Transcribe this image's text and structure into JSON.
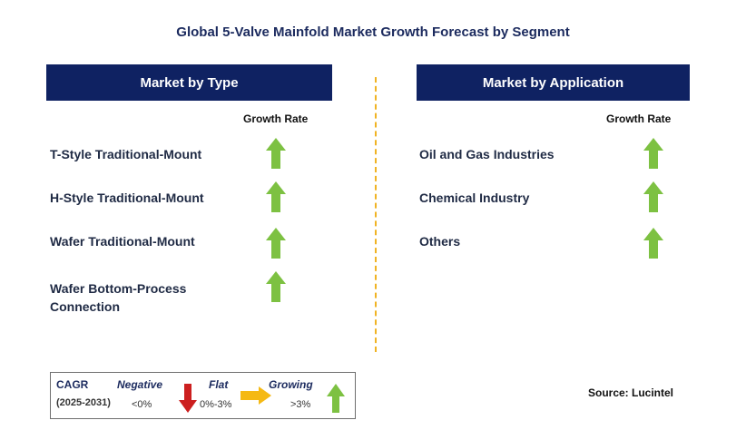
{
  "title": "Global 5-Valve Mainfold Market Growth Forecast by Segment",
  "left_panel": {
    "header": "Market by Type",
    "growth_rate_label": "Growth Rate",
    "items": [
      {
        "label": "T-Style Traditional-Mount",
        "trend": "growing"
      },
      {
        "label": "H-Style Traditional-Mount",
        "trend": "growing"
      },
      {
        "label": "Wafer Traditional-Mount",
        "trend": "growing"
      },
      {
        "label_line1": "Wafer Bottom-Process",
        "label_line2": "Connection",
        "trend": "growing"
      }
    ]
  },
  "right_panel": {
    "header": "Market by Application",
    "growth_rate_label": "Growth Rate",
    "items": [
      {
        "label": "Oil and Gas Industries",
        "trend": "growing"
      },
      {
        "label": "Chemical Industry",
        "trend": "growing"
      },
      {
        "label": "Others",
        "trend": "growing"
      }
    ]
  },
  "legend": {
    "cagr_label": "CAGR",
    "period": "(2025-2031)",
    "negative_label": "Negative",
    "negative_range": "<0%",
    "flat_label": "Flat",
    "flat_range": "0%-3%",
    "growing_label": "Growing",
    "growing_range": ">3%"
  },
  "source": "Source: Lucintel",
  "colors": {
    "header_bg": "#0f2262",
    "growing_arrow": "#7dc142",
    "negative_arrow": "#cc1f1f",
    "flat_arrow": "#f5b914",
    "divider": "#f0b323"
  }
}
